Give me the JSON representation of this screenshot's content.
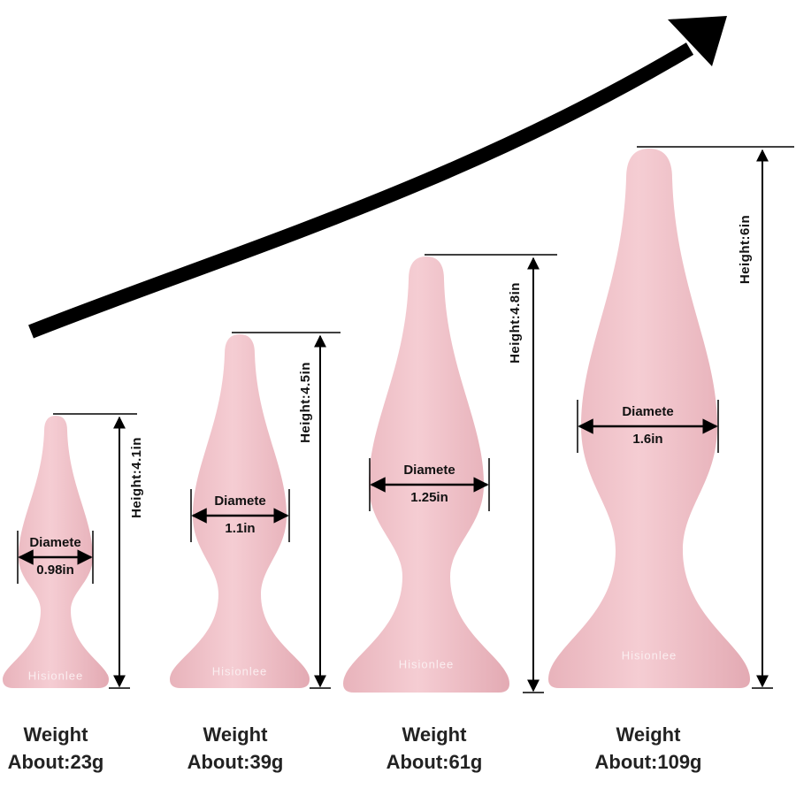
{
  "title_arrow": true,
  "items": [
    {
      "diameter_label": "Diamete",
      "diameter": "0.98in",
      "height": "Height:4.1in",
      "brand": "Hisionlee",
      "weight_label": "Weight",
      "weight": "About:23g"
    },
    {
      "diameter_label": "Diamete",
      "diameter": "1.1in",
      "height": "Height:4.5in",
      "brand": "Hisionlee",
      "weight_label": "Weight",
      "weight": "About:39g"
    },
    {
      "diameter_label": "Diamete",
      "diameter": "1.25in",
      "height": "Height:4.8in",
      "brand": "Hisionlee",
      "weight_label": "Weight",
      "weight": "About:61g"
    },
    {
      "diameter_label": "Diamete",
      "diameter": "1.6in",
      "height": "Height:6in",
      "brand": "Hisionlee",
      "weight_label": "Weight",
      "weight": "About:109g"
    }
  ]
}
